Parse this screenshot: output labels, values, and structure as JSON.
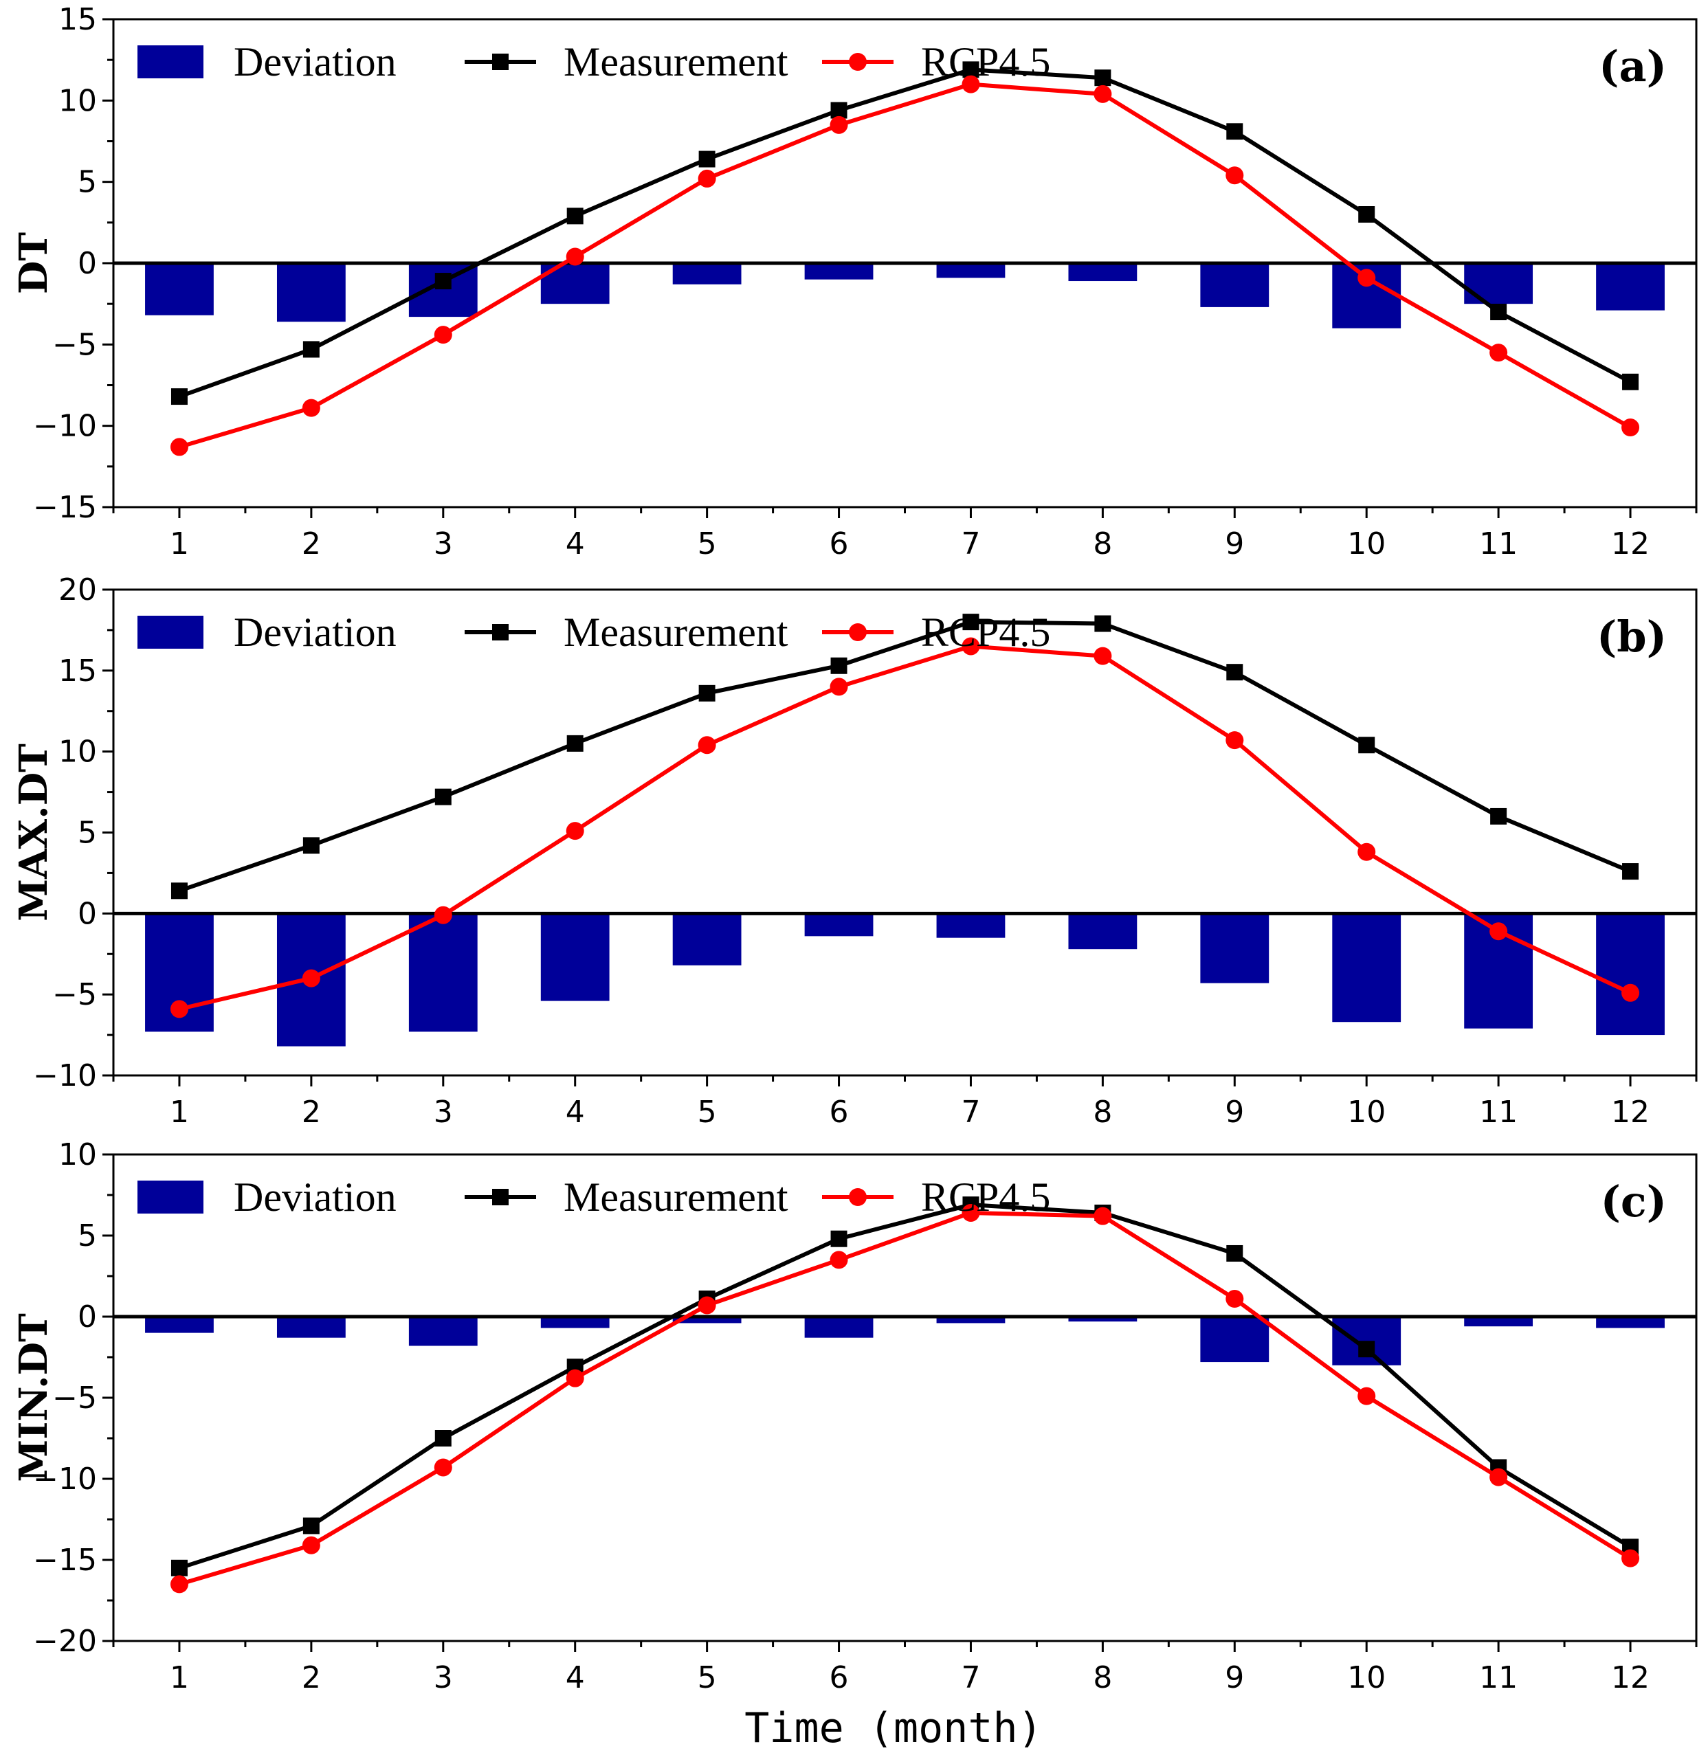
{
  "chart_data": [
    {
      "type": "bar+line",
      "panel_label": "(a)",
      "ylabel": "DT",
      "ylim": [
        -15,
        15
      ],
      "yticks": [
        -15,
        -10,
        -5,
        0,
        5,
        10,
        15
      ],
      "categories": [
        "1",
        "2",
        "3",
        "4",
        "5",
        "6",
        "7",
        "8",
        "9",
        "10",
        "11",
        "12"
      ],
      "legend": [
        "Deviation",
        "Measurement",
        "RCP4.5"
      ],
      "legend_position": "top-left",
      "series": [
        {
          "name": "Deviation",
          "kind": "bar",
          "color": "#000099",
          "values": [
            -3.2,
            -3.6,
            -3.3,
            -2.5,
            -1.3,
            -1.0,
            -0.9,
            -1.1,
            -2.7,
            -4.0,
            -2.5,
            -2.9
          ]
        },
        {
          "name": "Measurement",
          "kind": "line",
          "marker": "square",
          "color": "#000000",
          "values": [
            -8.2,
            -5.3,
            -1.1,
            2.9,
            6.4,
            9.4,
            11.9,
            11.4,
            8.1,
            3.0,
            -3.0,
            -7.3
          ]
        },
        {
          "name": "RCP4.5",
          "kind": "line",
          "marker": "circle",
          "color": "#ff0000",
          "values": [
            -11.3,
            -8.9,
            -4.4,
            0.4,
            5.2,
            8.5,
            11.0,
            10.4,
            5.4,
            -0.9,
            -5.5,
            -10.1
          ]
        }
      ]
    },
    {
      "type": "bar+line",
      "panel_label": "(b)",
      "ylabel": "MAX.DT",
      "ylim": [
        -10,
        20
      ],
      "yticks": [
        -10,
        -5,
        0,
        5,
        10,
        15,
        20
      ],
      "categories": [
        "1",
        "2",
        "3",
        "4",
        "5",
        "6",
        "7",
        "8",
        "9",
        "10",
        "11",
        "12"
      ],
      "legend": [
        "Deviation",
        "Measurement",
        "RCP4.5"
      ],
      "legend_position": "top-left",
      "series": [
        {
          "name": "Deviation",
          "kind": "bar",
          "color": "#000099",
          "values": [
            -7.3,
            -8.2,
            -7.3,
            -5.4,
            -3.2,
            -1.4,
            -1.5,
            -2.2,
            -4.3,
            -6.7,
            -7.1,
            -7.5
          ]
        },
        {
          "name": "Measurement",
          "kind": "line",
          "marker": "square",
          "color": "#000000",
          "values": [
            1.4,
            4.2,
            7.2,
            10.5,
            13.6,
            15.3,
            18.0,
            17.9,
            14.9,
            10.4,
            6.0,
            2.6
          ]
        },
        {
          "name": "RCP4.5",
          "kind": "line",
          "marker": "circle",
          "color": "#ff0000",
          "values": [
            -5.9,
            -4.0,
            -0.1,
            5.1,
            10.4,
            14.0,
            16.5,
            15.9,
            10.7,
            3.8,
            -1.1,
            -4.9
          ]
        }
      ]
    },
    {
      "type": "bar+line",
      "panel_label": "(c)",
      "ylabel": "MIN.DT",
      "ylim": [
        -20,
        10
      ],
      "yticks": [
        -20,
        -15,
        -10,
        -5,
        0,
        5,
        10
      ],
      "categories": [
        "1",
        "2",
        "3",
        "4",
        "5",
        "6",
        "7",
        "8",
        "9",
        "10",
        "11",
        "12"
      ],
      "legend": [
        "Deviation",
        "Measurement",
        "RCP4.5"
      ],
      "legend_position": "top-left",
      "xlabel": "Time (month)",
      "series": [
        {
          "name": "Deviation",
          "kind": "bar",
          "color": "#000099",
          "values": [
            -1.0,
            -1.3,
            -1.8,
            -0.7,
            -0.4,
            -1.3,
            -0.4,
            -0.3,
            -2.8,
            -3.0,
            -0.6,
            -0.7
          ]
        },
        {
          "name": "Measurement",
          "kind": "line",
          "marker": "square",
          "color": "#000000",
          "values": [
            -15.5,
            -12.9,
            -7.5,
            -3.1,
            1.1,
            4.8,
            6.9,
            6.4,
            3.9,
            -2.0,
            -9.3,
            -14.2
          ]
        },
        {
          "name": "RCP4.5",
          "kind": "line",
          "marker": "circle",
          "color": "#ff0000",
          "values": [
            -16.5,
            -14.1,
            -9.3,
            -3.8,
            0.7,
            3.5,
            6.4,
            6.2,
            1.1,
            -4.9,
            -9.9,
            -14.9
          ]
        }
      ]
    }
  ]
}
